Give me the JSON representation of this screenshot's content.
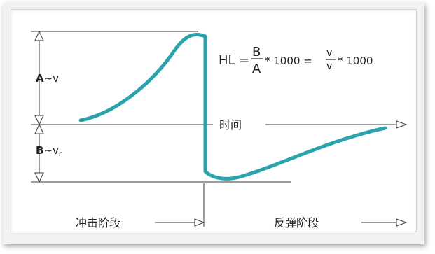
{
  "labels": {
    "a_letter": "A",
    "a_rest": "~v",
    "a_sub": "i",
    "b_letter": "B",
    "b_rest": "~v",
    "b_sub": "r",
    "time_axis": "时间",
    "impact_phase": "冲击阶段",
    "rebound_phase": "反弹阶段"
  },
  "formula": {
    "lhs": "HL =",
    "num1": "B",
    "den1": "A",
    "mult1": "* 1000 =",
    "num2_base": "v",
    "num2_sub": "r",
    "den2_base": "v",
    "den2_sub": "i",
    "mult2": "* 1000"
  },
  "colors": {
    "curve": "#2aa3ad",
    "lines": "#3a3a3a",
    "text": "#222222"
  }
}
